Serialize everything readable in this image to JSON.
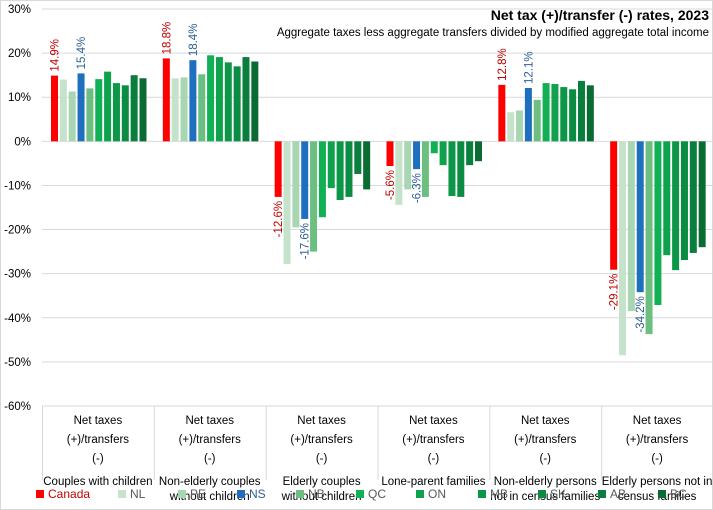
{
  "chart_data": {
    "type": "bar",
    "title": "Net tax (+)/transfer (-) rates, 2023",
    "subtitle": "Aggregate taxes less aggregate transfers divided by modified aggregate total income",
    "xlabel": "",
    "ylabel": "",
    "ylim": [
      -60,
      30
    ],
    "yticks": [
      30,
      20,
      10,
      0,
      -10,
      -20,
      -30,
      -40,
      -50,
      -60
    ],
    "ytick_labels": [
      "30%",
      "20%",
      "10%",
      "0%",
      "-10%",
      "-20%",
      "-30%",
      "-40%",
      "-50%",
      "-60%"
    ],
    "grid": true,
    "legend_position": "bottom",
    "category_header": "Net taxes (+)/transfers (-)",
    "categories": [
      "Couples with children",
      "Non-elderly couples without children",
      "Elderly couples without children",
      "Lone-parent families",
      "Non-elderly persons not in census families",
      "Elderly persons not in census families"
    ],
    "series": [
      {
        "name": "Canada",
        "color": "#FF0000",
        "label_color": "#C00000",
        "labeled": true,
        "values": [
          14.9,
          18.8,
          -12.6,
          -5.6,
          12.8,
          -29.1
        ]
      },
      {
        "name": "NL",
        "color": "#C5E3CB",
        "label_color": "#595959",
        "labeled": false,
        "values": [
          14.0,
          14.3,
          -27.8,
          -14.4,
          6.6,
          -48.5
        ]
      },
      {
        "name": "PE",
        "color": "#A9D6B2",
        "label_color": "#595959",
        "labeled": false,
        "values": [
          11.3,
          14.5,
          -19.5,
          -10.9,
          7.0,
          -38.5
        ]
      },
      {
        "name": "NS",
        "color": "#1F6FBF",
        "label_color": "#2E5F96",
        "labeled": true,
        "values": [
          15.4,
          18.4,
          -17.6,
          -6.3,
          12.1,
          -34.2
        ]
      },
      {
        "name": "NB",
        "color": "#6CBF81",
        "label_color": "#595959",
        "labeled": false,
        "values": [
          12.0,
          15.2,
          -25.0,
          -12.6,
          9.4,
          -43.7
        ]
      },
      {
        "name": "QC",
        "color": "#12B054",
        "label_color": "#595959",
        "labeled": false,
        "values": [
          14.1,
          19.5,
          -17.2,
          -2.7,
          13.2,
          -37.1
        ]
      },
      {
        "name": "ON",
        "color": "#0FA24C",
        "label_color": "#595959",
        "labeled": false,
        "values": [
          15.8,
          19.1,
          -10.6,
          -5.4,
          13.0,
          -25.8
        ]
      },
      {
        "name": "MB",
        "color": "#0C9647",
        "label_color": "#595959",
        "labeled": false,
        "values": [
          13.2,
          17.9,
          -13.3,
          -12.4,
          12.3,
          -29.2
        ]
      },
      {
        "name": "SK",
        "color": "#0B8C43",
        "label_color": "#595959",
        "labeled": false,
        "values": [
          12.7,
          17.0,
          -12.6,
          -12.6,
          11.8,
          -26.9
        ]
      },
      {
        "name": "AB",
        "color": "#0A7E3C",
        "label_color": "#595959",
        "labeled": false,
        "values": [
          15.0,
          19.1,
          -7.4,
          -5.4,
          13.7,
          -25.3
        ]
      },
      {
        "name": "BC",
        "color": "#0A6B33",
        "label_color": "#595959",
        "labeled": false,
        "values": [
          14.3,
          18.1,
          -10.9,
          -4.5,
          12.7,
          -24.0
        ]
      }
    ],
    "data_labels": {
      "Canada": [
        "14.9%",
        "18.8%",
        "-12.6%",
        "-5.6%",
        "12.8%",
        "-29.1%"
      ],
      "NS": [
        "15.4%",
        "18.4%",
        "-17.6%",
        "-6.3%",
        "12.1%",
        "-34.2%"
      ]
    }
  }
}
